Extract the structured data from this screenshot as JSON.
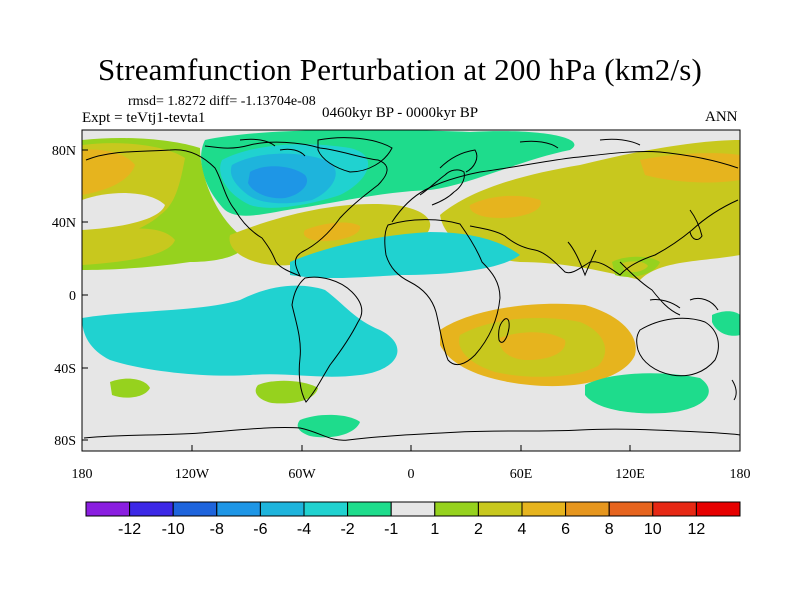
{
  "title": "Streamfunction Perturbation at 200 hPa (km2/s)",
  "stats_line": "rmsd= 1.8272 diff= -1.13704e-08",
  "experiment": "Expt = teVtj1-tevta1",
  "period": "0460kyr BP - 0000kyr BP",
  "season": "ANN",
  "lon_ticks": [
    "180",
    "120W",
    "60W",
    "0",
    "60E",
    "120E",
    "180"
  ],
  "lat_ticks": [
    "80N",
    "40N",
    "0",
    "40S",
    "80S"
  ],
  "colorbar": {
    "labels": [
      "-12",
      "-10",
      "-8",
      "-6",
      "-4",
      "-2",
      "-1",
      "1",
      "2",
      "4",
      "6",
      "8",
      "10",
      "12"
    ],
    "colors": [
      "#8a1ee0",
      "#3c28e6",
      "#1e64dc",
      "#1e96e6",
      "#1eb4dc",
      "#20d2d0",
      "#1edc8c",
      "#e6e6e6",
      "#96d21e",
      "#c8c81e",
      "#e6b41e",
      "#e6961e",
      "#e6641e",
      "#e62814",
      "#e60000"
    ]
  },
  "field_regions": [
    {
      "name": "neg-green-north-america",
      "category": "-1..-2",
      "color": "#1edc8c"
    },
    {
      "name": "neg-cyan-north-america",
      "category": "-2..-4",
      "color": "#20d2d0"
    },
    {
      "name": "neg-light-blue-core",
      "category": "-4..-6",
      "color": "#1eb4dc"
    },
    {
      "name": "neg-blue-core",
      "category": "-6..-8",
      "color": "#1e96e6"
    },
    {
      "name": "pos-green-pacific-arctic",
      "category": "1..2",
      "color": "#96d21e"
    },
    {
      "name": "pos-yellow-north-pacific",
      "category": "2..4",
      "color": "#c8c81e"
    },
    {
      "name": "pos-orange-north-pacific",
      "category": "4..6",
      "color": "#e6b41e"
    },
    {
      "name": "pos-band-atlantic",
      "category": "1..6",
      "color": "#c8c81e"
    },
    {
      "name": "pos-eurasia",
      "category": "1..4",
      "color": "#c8c81e"
    },
    {
      "name": "pos-south-indian-ocean",
      "category": "1..6",
      "color": "#e6b41e"
    },
    {
      "name": "neg-tropical-band",
      "category": "-1..-4",
      "color": "#20d2d0"
    },
    {
      "name": "neg-south-pacific-atlantic",
      "category": "-1..-4",
      "color": "#20d2d0"
    },
    {
      "name": "pos-south-america-patagonia",
      "category": "1..2",
      "color": "#96d21e"
    }
  ]
}
